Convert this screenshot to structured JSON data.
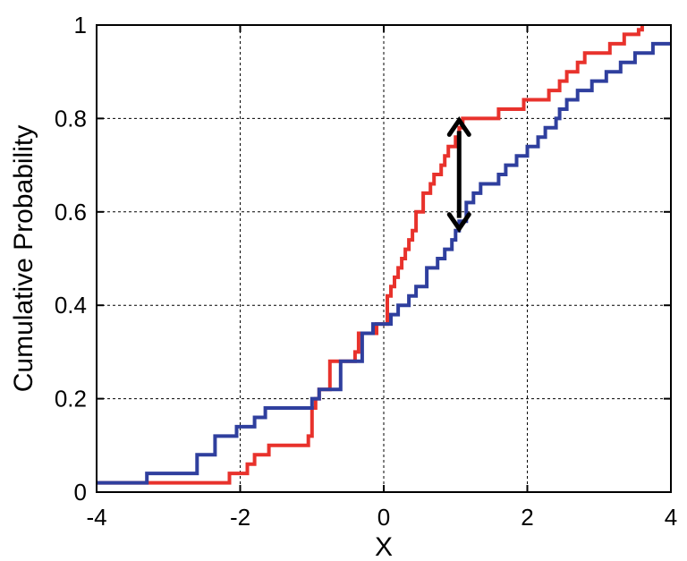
{
  "chart_data": {
    "type": "line",
    "step": true,
    "title": "",
    "xlabel": "X",
    "ylabel": "Cumulative Probability",
    "xlim": [
      -4,
      4
    ],
    "ylim": [
      0,
      1
    ],
    "xticks": [
      -4,
      -2,
      0,
      2,
      4
    ],
    "yticks": [
      0,
      0.2,
      0.4,
      0.6,
      0.8,
      1
    ],
    "xtick_labels": [
      "-4",
      "-2",
      "0",
      "2",
      "4"
    ],
    "ytick_labels": [
      "0",
      "0.2",
      "0.4",
      "0.6",
      "0.8",
      "1"
    ],
    "grid": true,
    "colors": {
      "red_series": "#e8322c",
      "blue_series": "#2f3f9e",
      "arrow": "#000000"
    },
    "series": [
      {
        "color": "#e8322c",
        "x": [
          -4,
          -2.15,
          -1.9,
          -1.8,
          -1.6,
          -1.05,
          -1.0,
          -0.95,
          -0.9,
          -0.75,
          -0.4,
          -0.35,
          -0.1,
          0.05,
          0.1,
          0.15,
          0.2,
          0.25,
          0.3,
          0.35,
          0.4,
          0.45,
          0.55,
          0.65,
          0.7,
          0.8,
          0.85,
          0.9,
          1.0,
          1.05,
          1.1,
          1.5,
          1.6,
          1.95,
          2.3,
          2.4,
          2.45,
          2.55,
          2.7,
          2.8,
          3.0,
          3.15,
          3.35,
          3.55,
          3.6
        ],
        "y": [
          0.02,
          0.04,
          0.06,
          0.08,
          0.1,
          0.12,
          0.18,
          0.2,
          0.22,
          0.28,
          0.3,
          0.34,
          0.36,
          0.42,
          0.44,
          0.46,
          0.48,
          0.5,
          0.52,
          0.54,
          0.56,
          0.6,
          0.64,
          0.66,
          0.68,
          0.7,
          0.72,
          0.74,
          0.76,
          0.78,
          0.8,
          0.8,
          0.82,
          0.84,
          0.86,
          0.86,
          0.88,
          0.9,
          0.92,
          0.94,
          0.94,
          0.96,
          0.98,
          0.99,
          1.0
        ]
      },
      {
        "color": "#2f3f9e",
        "x": [
          -4,
          -3.3,
          -2.6,
          -2.35,
          -2.05,
          -1.8,
          -1.65,
          -1.0,
          -0.9,
          -0.6,
          -0.3,
          -0.15,
          0.1,
          0.2,
          0.35,
          0.45,
          0.6,
          0.75,
          0.85,
          0.95,
          1.0,
          1.05,
          1.15,
          1.25,
          1.35,
          1.6,
          1.7,
          1.85,
          2.0,
          2.15,
          2.25,
          2.4,
          2.45,
          2.55,
          2.7,
          2.9,
          3.1,
          3.3,
          3.5,
          3.75,
          4.0
        ],
        "y": [
          0.02,
          0.04,
          0.08,
          0.12,
          0.14,
          0.16,
          0.18,
          0.2,
          0.22,
          0.28,
          0.34,
          0.36,
          0.38,
          0.4,
          0.42,
          0.44,
          0.48,
          0.5,
          0.52,
          0.54,
          0.56,
          0.58,
          0.62,
          0.64,
          0.66,
          0.68,
          0.7,
          0.72,
          0.74,
          0.76,
          0.78,
          0.8,
          0.82,
          0.84,
          0.86,
          0.88,
          0.9,
          0.92,
          0.94,
          0.96,
          0.96
        ]
      }
    ],
    "annotations": [
      {
        "type": "double-arrow",
        "x": 1.05,
        "y_from": 0.56,
        "y_to": 0.8
      }
    ]
  }
}
